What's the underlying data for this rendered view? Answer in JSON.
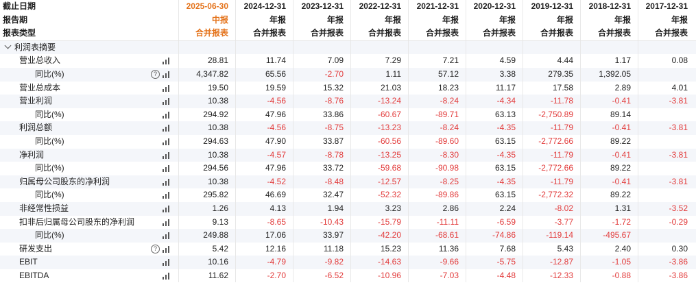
{
  "header": {
    "row_labels": [
      "截止日期",
      "报告期",
      "报表类型"
    ],
    "columns": [
      {
        "date": "2025-06-30",
        "period": "中报",
        "type": "合并报表"
      },
      {
        "date": "2024-12-31",
        "period": "年报",
        "type": "合并报表"
      },
      {
        "date": "2023-12-31",
        "period": "年报",
        "type": "合并报表"
      },
      {
        "date": "2022-12-31",
        "period": "年报",
        "type": "合并报表"
      },
      {
        "date": "2021-12-31",
        "period": "年报",
        "type": "合并报表"
      },
      {
        "date": "2020-12-31",
        "period": "年报",
        "type": "合并报表"
      },
      {
        "date": "2019-12-31",
        "period": "年报",
        "type": "合并报表"
      },
      {
        "date": "2018-12-31",
        "period": "年报",
        "type": "合并报表"
      },
      {
        "date": "2017-12-31",
        "period": "年报",
        "type": "合并报表"
      }
    ]
  },
  "section": {
    "title": "利润表摘要",
    "icon": "chevron-down-icon"
  },
  "rows": [
    {
      "label": "营业总收入",
      "indent": 1,
      "help": false,
      "values": [
        "28.81",
        "11.74",
        "7.09",
        "7.29",
        "7.21",
        "4.59",
        "4.44",
        "1.17",
        "0.08"
      ]
    },
    {
      "label": "同比(%)",
      "indent": 2,
      "help": true,
      "values": [
        "4,347.82",
        "65.56",
        "-2.70",
        "1.11",
        "57.12",
        "3.38",
        "279.35",
        "1,392.05",
        ""
      ]
    },
    {
      "label": "营业总成本",
      "indent": 1,
      "help": false,
      "values": [
        "19.50",
        "19.59",
        "15.32",
        "21.03",
        "18.23",
        "11.17",
        "17.58",
        "2.89",
        "4.01"
      ]
    },
    {
      "label": "营业利润",
      "indent": 1,
      "help": false,
      "values": [
        "10.38",
        "-4.56",
        "-8.76",
        "-13.24",
        "-8.24",
        "-4.34",
        "-11.78",
        "-0.41",
        "-3.81"
      ]
    },
    {
      "label": "同比(%)",
      "indent": 2,
      "help": false,
      "values": [
        "294.92",
        "47.96",
        "33.86",
        "-60.67",
        "-89.71",
        "63.13",
        "-2,750.89",
        "89.14",
        ""
      ]
    },
    {
      "label": "利润总额",
      "indent": 1,
      "help": false,
      "values": [
        "10.38",
        "-4.56",
        "-8.75",
        "-13.23",
        "-8.24",
        "-4.35",
        "-11.79",
        "-0.41",
        "-3.81"
      ]
    },
    {
      "label": "同比(%)",
      "indent": 2,
      "help": false,
      "values": [
        "294.63",
        "47.90",
        "33.87",
        "-60.56",
        "-89.60",
        "63.15",
        "-2,772.66",
        "89.22",
        ""
      ]
    },
    {
      "label": "净利润",
      "indent": 1,
      "help": false,
      "values": [
        "10.38",
        "-4.57",
        "-8.78",
        "-13.25",
        "-8.30",
        "-4.35",
        "-11.79",
        "-0.41",
        "-3.81"
      ]
    },
    {
      "label": "同比(%)",
      "indent": 2,
      "help": false,
      "values": [
        "294.56",
        "47.96",
        "33.72",
        "-59.68",
        "-90.98",
        "63.15",
        "-2,772.66",
        "89.22",
        ""
      ]
    },
    {
      "label": "归属母公司股东的净利润",
      "indent": 1,
      "help": false,
      "values": [
        "10.38",
        "-4.52",
        "-8.48",
        "-12.57",
        "-8.25",
        "-4.35",
        "-11.79",
        "-0.41",
        "-3.81"
      ]
    },
    {
      "label": "同比(%)",
      "indent": 2,
      "help": false,
      "values": [
        "295.82",
        "46.69",
        "32.47",
        "-52.32",
        "-89.86",
        "63.15",
        "-2,772.32",
        "89.22",
        ""
      ]
    },
    {
      "label": "非经常性损益",
      "indent": 1,
      "help": false,
      "values": [
        "1.26",
        "4.13",
        "1.94",
        "3.23",
        "2.86",
        "2.24",
        "-8.02",
        "1.31",
        "-3.52"
      ]
    },
    {
      "label": "扣非后归属母公司股东的净利润",
      "indent": 1,
      "help": false,
      "values": [
        "9.13",
        "-8.65",
        "-10.43",
        "-15.79",
        "-11.11",
        "-6.59",
        "-3.77",
        "-1.72",
        "-0.29"
      ]
    },
    {
      "label": "同比(%)",
      "indent": 2,
      "help": false,
      "values": [
        "249.88",
        "17.06",
        "33.97",
        "-42.20",
        "-68.61",
        "-74.86",
        "-119.14",
        "-495.67",
        ""
      ]
    },
    {
      "label": "研发支出",
      "indent": 1,
      "help": true,
      "values": [
        "5.42",
        "12.16",
        "11.18",
        "15.23",
        "11.36",
        "7.68",
        "5.43",
        "2.40",
        "0.30"
      ]
    },
    {
      "label": "EBIT",
      "indent": 1,
      "help": false,
      "values": [
        "10.16",
        "-4.79",
        "-9.82",
        "-14.63",
        "-9.66",
        "-5.75",
        "-12.87",
        "-1.05",
        "-3.86"
      ]
    },
    {
      "label": "EBITDA",
      "indent": 1,
      "help": false,
      "values": [
        "11.62",
        "-2.70",
        "-6.52",
        "-10.96",
        "-7.03",
        "-4.48",
        "-12.33",
        "-0.88",
        "-3.86"
      ]
    }
  ],
  "colors": {
    "highlight": "#e4731b",
    "negative": "#e23b3b",
    "stripe": "#f4f6fa"
  }
}
